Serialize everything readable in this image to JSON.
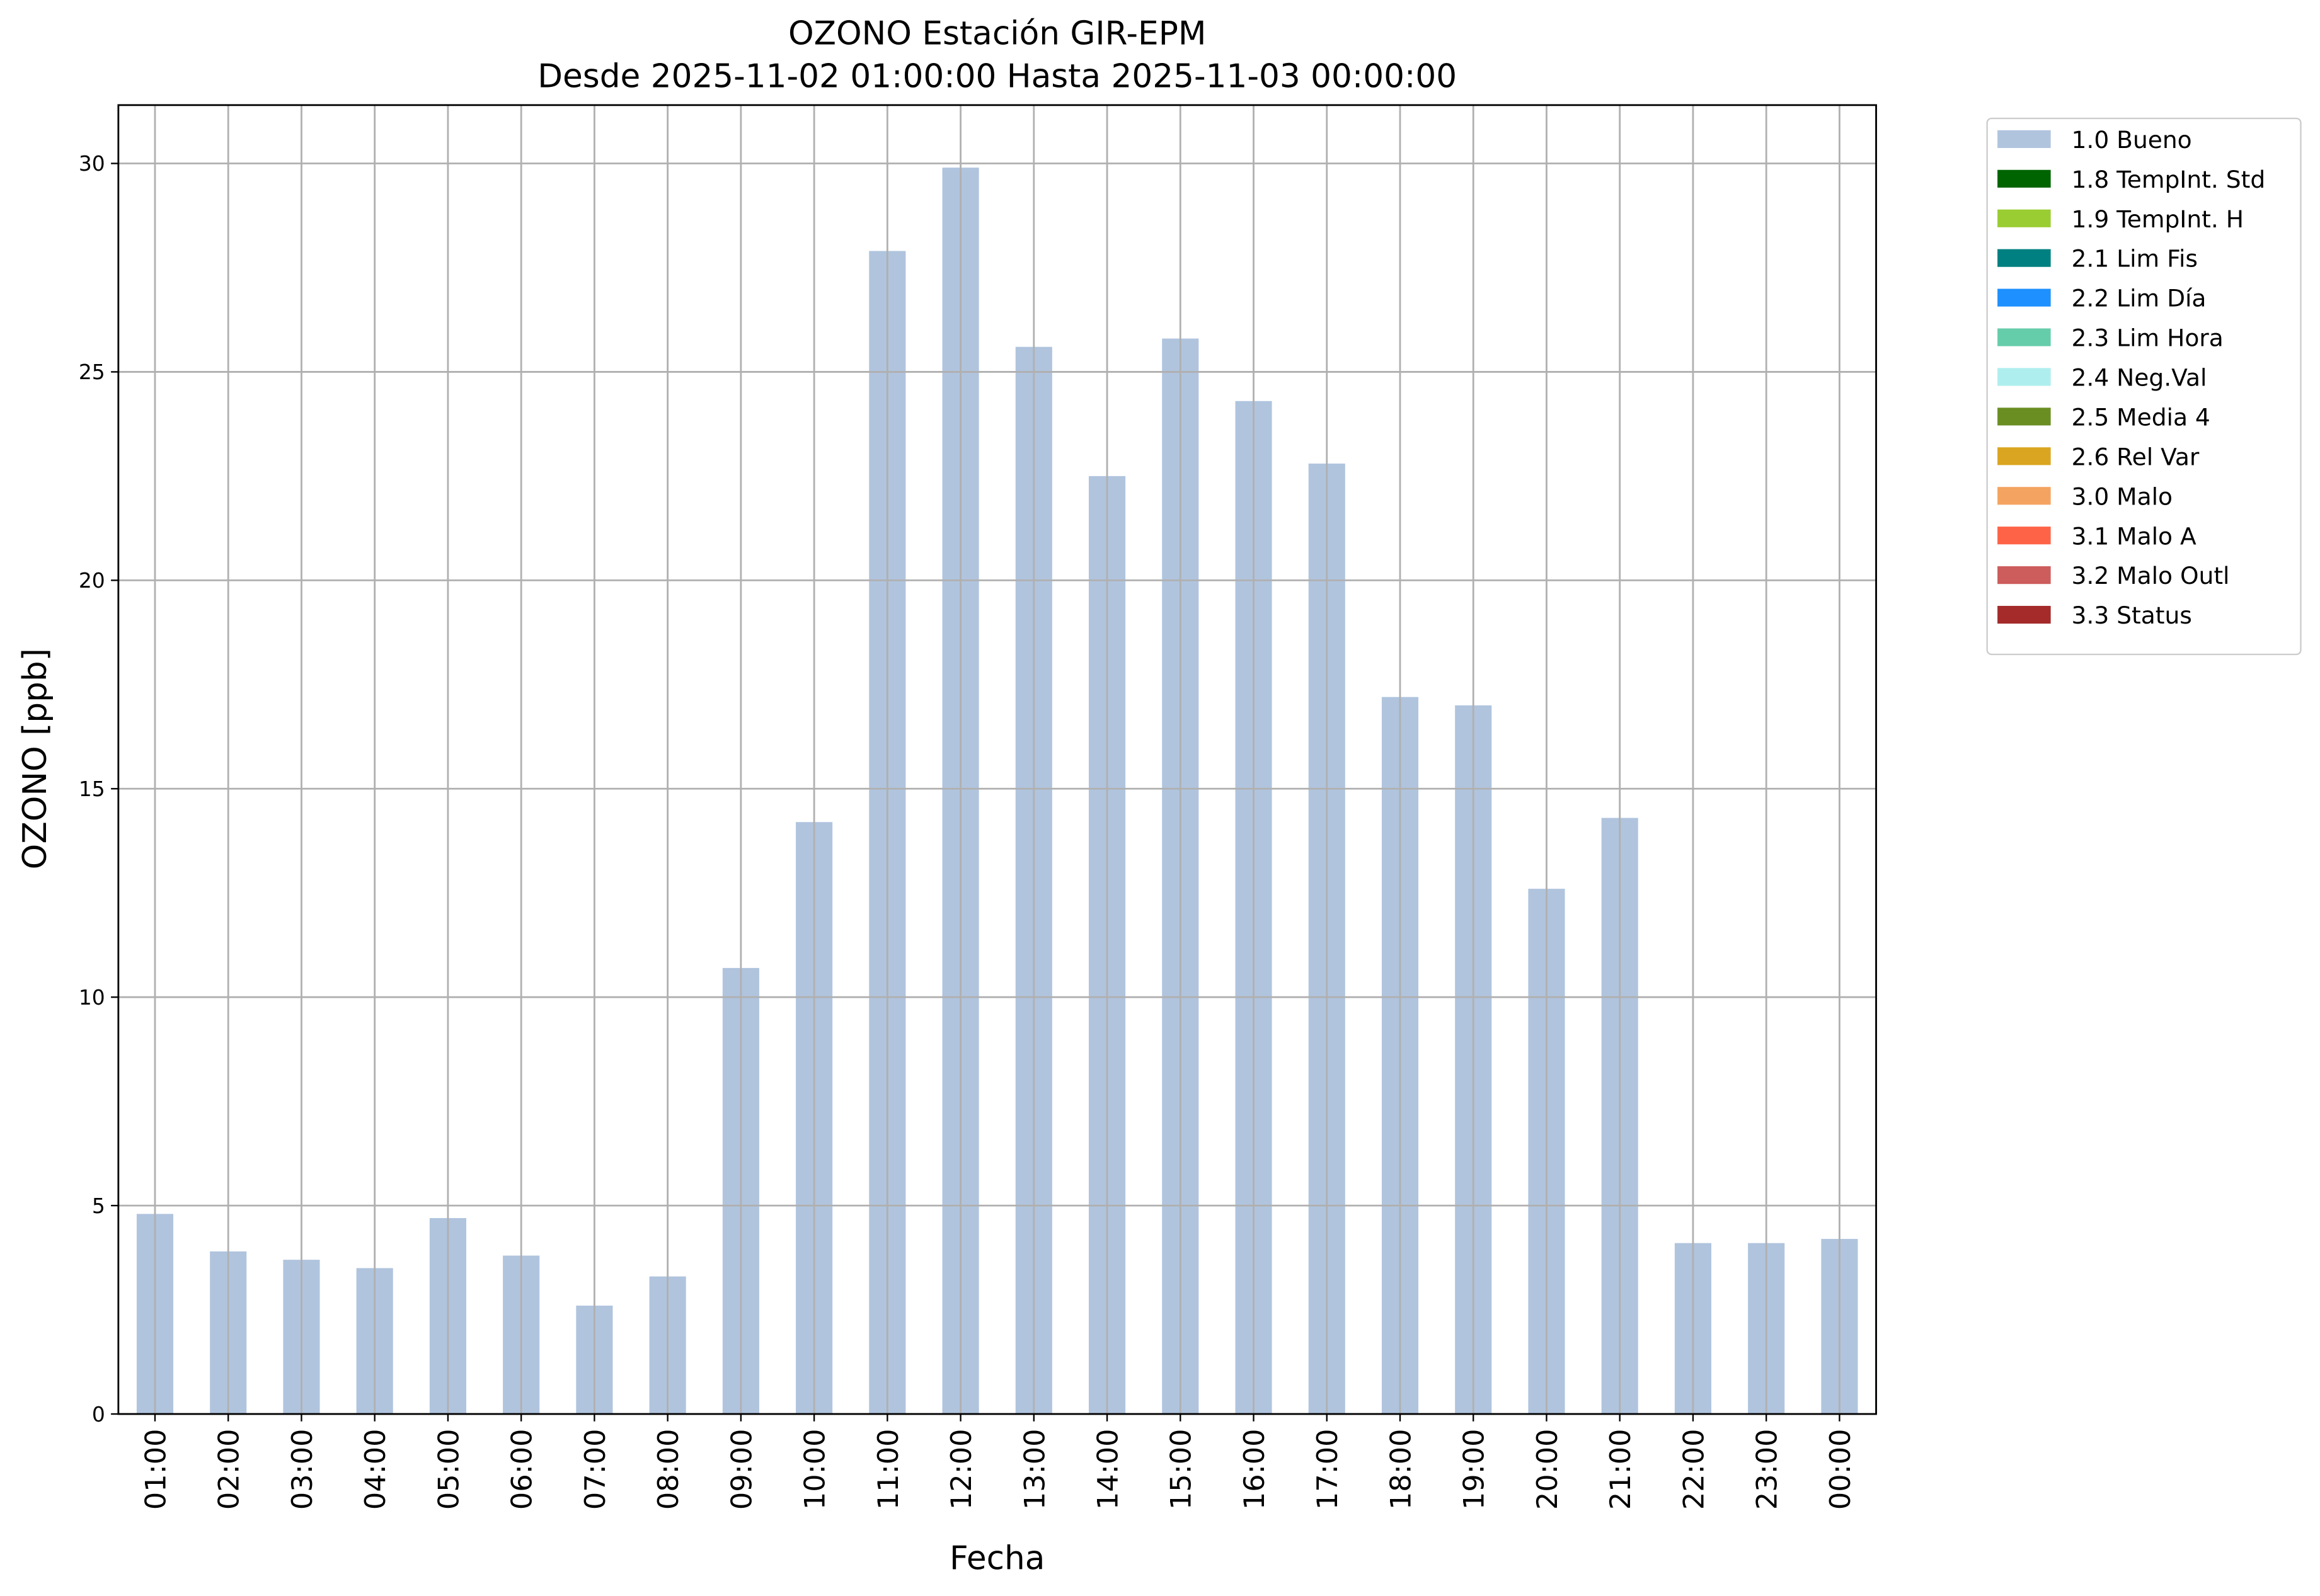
{
  "chart_data": {
    "type": "bar",
    "title": "OZONO Estación GIR-EPM",
    "subtitle": "Desde 2025-11-02 01:00:00 Hasta 2025-11-03 00:00:00",
    "x_label": "Fecha",
    "y_label": "OZONO [ppb]",
    "categories": [
      "01:00",
      "02:00",
      "03:00",
      "04:00",
      "05:00",
      "06:00",
      "07:00",
      "08:00",
      "09:00",
      "10:00",
      "11:00",
      "12:00",
      "13:00",
      "14:00",
      "15:00",
      "16:00",
      "17:00",
      "18:00",
      "19:00",
      "20:00",
      "21:00",
      "22:00",
      "23:00",
      "00:00"
    ],
    "series": [
      {
        "name": "1.0 Bueno",
        "color": "#b0c4de",
        "values": [
          4.8,
          3.9,
          3.7,
          3.5,
          4.7,
          3.8,
          2.6,
          3.3,
          10.7,
          14.2,
          27.9,
          29.9,
          25.6,
          22.5,
          25.8,
          24.3,
          22.8,
          17.2,
          17.0,
          12.6,
          14.3,
          4.1,
          4.1,
          4.2
        ]
      },
      {
        "name": "1.8 TempInt. Std",
        "color": "#006400",
        "values": [
          null,
          null,
          null,
          null,
          null,
          null,
          null,
          null,
          null,
          null,
          null,
          null,
          null,
          null,
          null,
          null,
          null,
          null,
          null,
          null,
          null,
          null,
          null,
          null
        ]
      },
      {
        "name": "1.9 TempInt. H",
        "color": "#9acd32",
        "values": [
          null,
          null,
          null,
          null,
          null,
          null,
          null,
          null,
          null,
          null,
          null,
          null,
          null,
          null,
          null,
          null,
          null,
          null,
          null,
          null,
          null,
          null,
          null,
          null
        ]
      },
      {
        "name": "2.1 Lim Fis",
        "color": "#008080",
        "values": [
          null,
          null,
          null,
          null,
          null,
          null,
          null,
          null,
          null,
          null,
          null,
          null,
          null,
          null,
          null,
          null,
          null,
          null,
          null,
          null,
          null,
          null,
          null,
          null
        ]
      },
      {
        "name": "2.2 Lim Día",
        "color": "#1e90ff",
        "values": [
          null,
          null,
          null,
          null,
          null,
          null,
          null,
          null,
          null,
          null,
          null,
          null,
          null,
          null,
          null,
          null,
          null,
          null,
          null,
          null,
          null,
          null,
          null,
          null
        ]
      },
      {
        "name": "2.3 Lim Hora",
        "color": "#66cdaa",
        "values": [
          null,
          null,
          null,
          null,
          null,
          null,
          null,
          null,
          null,
          null,
          null,
          null,
          null,
          null,
          null,
          null,
          null,
          null,
          null,
          null,
          null,
          null,
          null,
          null
        ]
      },
      {
        "name": "2.4 Neg.Val",
        "color": "#afeeee",
        "values": [
          null,
          null,
          null,
          null,
          null,
          null,
          null,
          null,
          null,
          null,
          null,
          null,
          null,
          null,
          null,
          null,
          null,
          null,
          null,
          null,
          null,
          null,
          null,
          null
        ]
      },
      {
        "name": "2.5 Media 4",
        "color": "#6b8e23",
        "values": [
          null,
          null,
          null,
          null,
          null,
          null,
          null,
          null,
          null,
          null,
          null,
          null,
          null,
          null,
          null,
          null,
          null,
          null,
          null,
          null,
          null,
          null,
          null,
          null
        ]
      },
      {
        "name": "2.6 Rel Var",
        "color": "#daa520",
        "values": [
          null,
          null,
          null,
          null,
          null,
          null,
          null,
          null,
          null,
          null,
          null,
          null,
          null,
          null,
          null,
          null,
          null,
          null,
          null,
          null,
          null,
          null,
          null,
          null
        ]
      },
      {
        "name": "3.0 Malo",
        "color": "#f4a460",
        "values": [
          null,
          null,
          null,
          null,
          null,
          null,
          null,
          null,
          null,
          null,
          null,
          null,
          null,
          null,
          null,
          null,
          null,
          null,
          null,
          null,
          null,
          null,
          null,
          null
        ]
      },
      {
        "name": "3.1 Malo A",
        "color": "#ff6347",
        "values": [
          null,
          null,
          null,
          null,
          null,
          null,
          null,
          null,
          null,
          null,
          null,
          null,
          null,
          null,
          null,
          null,
          null,
          null,
          null,
          null,
          null,
          null,
          null,
          null
        ]
      },
      {
        "name": "3.2 Malo Outl",
        "color": "#cd5c5c",
        "values": [
          null,
          null,
          null,
          null,
          null,
          null,
          null,
          null,
          null,
          null,
          null,
          null,
          null,
          null,
          null,
          null,
          null,
          null,
          null,
          null,
          null,
          null,
          null,
          null
        ]
      },
      {
        "name": "3.3 Status",
        "color": "#a52a2a",
        "values": [
          null,
          null,
          null,
          null,
          null,
          null,
          null,
          null,
          null,
          null,
          null,
          null,
          null,
          null,
          null,
          null,
          null,
          null,
          null,
          null,
          null,
          null,
          null,
          null
        ]
      }
    ],
    "ylim": [
      0,
      31.4
    ],
    "yticks": [
      0,
      5,
      10,
      15,
      20,
      25,
      30
    ],
    "grid": true,
    "legend": "outside-upper-right"
  }
}
